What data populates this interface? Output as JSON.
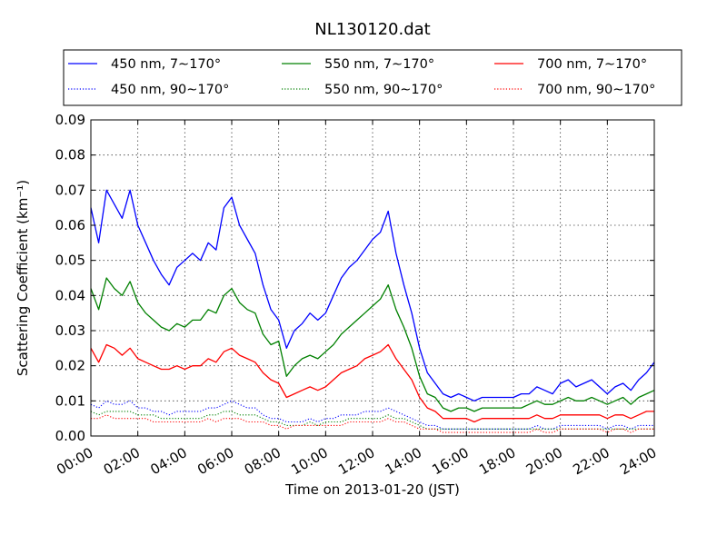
{
  "chart_data": {
    "type": "line",
    "title": "NL130120.dat",
    "xlabel": "Time on 2013-01-20 (JST)",
    "ylabel": "Scattering Coefficient (km⁻¹)",
    "xlim": [
      "00:00",
      "24:00"
    ],
    "ylim": [
      0,
      0.09
    ],
    "x_ticks": [
      "00:00",
      "02:00",
      "04:00",
      "06:00",
      "08:00",
      "10:00",
      "12:00",
      "14:00",
      "16:00",
      "18:00",
      "20:00",
      "22:00",
      "24:00"
    ],
    "y_ticks": [
      "0.00",
      "0.01",
      "0.02",
      "0.03",
      "0.04",
      "0.05",
      "0.06",
      "0.07",
      "0.08",
      "0.09"
    ],
    "grid": true,
    "legend_position": "top, above plot",
    "x": [
      "00:00",
      "00:20",
      "00:40",
      "01:00",
      "01:20",
      "01:40",
      "02:00",
      "02:20",
      "02:40",
      "03:00",
      "03:20",
      "03:40",
      "04:00",
      "04:20",
      "04:40",
      "05:00",
      "05:20",
      "05:40",
      "06:00",
      "06:20",
      "06:40",
      "07:00",
      "07:20",
      "07:40",
      "08:00",
      "08:20",
      "08:40",
      "09:00",
      "09:20",
      "09:40",
      "10:00",
      "10:20",
      "10:40",
      "11:00",
      "11:20",
      "11:40",
      "12:00",
      "12:20",
      "12:40",
      "13:00",
      "13:20",
      "13:40",
      "14:00",
      "14:20",
      "14:40",
      "15:00",
      "15:20",
      "15:40",
      "16:00",
      "16:20",
      "16:40",
      "17:00",
      "17:20",
      "17:40",
      "18:00",
      "18:20",
      "18:40",
      "19:00",
      "19:20",
      "19:40",
      "20:00",
      "20:20",
      "20:40",
      "21:00",
      "21:20",
      "21:40",
      "22:00",
      "22:20",
      "22:40",
      "23:00",
      "23:20",
      "23:40",
      "24:00"
    ],
    "series": [
      {
        "name": "450 nm, 7∼170°",
        "color": "#0000ff",
        "style": "solid",
        "values": [
          0.065,
          0.055,
          0.07,
          0.066,
          0.062,
          0.07,
          0.06,
          0.055,
          0.05,
          0.046,
          0.043,
          0.048,
          0.05,
          0.052,
          0.05,
          0.055,
          0.053,
          0.065,
          0.068,
          0.06,
          0.056,
          0.052,
          0.043,
          0.036,
          0.033,
          0.025,
          0.03,
          0.032,
          0.035,
          0.033,
          0.035,
          0.04,
          0.045,
          0.048,
          0.05,
          0.053,
          0.056,
          0.058,
          0.064,
          0.052,
          0.043,
          0.035,
          0.025,
          0.018,
          0.015,
          0.012,
          0.011,
          0.012,
          0.011,
          0.01,
          0.011,
          0.011,
          0.011,
          0.011,
          0.011,
          0.012,
          0.012,
          0.014,
          0.013,
          0.012,
          0.015,
          0.016,
          0.014,
          0.015,
          0.016,
          0.014,
          0.012,
          0.014,
          0.015,
          0.013,
          0.016,
          0.018,
          0.021
        ]
      },
      {
        "name": "550 nm, 7∼170°",
        "color": "#008000",
        "style": "solid",
        "values": [
          0.042,
          0.036,
          0.045,
          0.042,
          0.04,
          0.044,
          0.038,
          0.035,
          0.033,
          0.031,
          0.03,
          0.032,
          0.031,
          0.033,
          0.033,
          0.036,
          0.035,
          0.04,
          0.042,
          0.038,
          0.036,
          0.035,
          0.029,
          0.026,
          0.027,
          0.017,
          0.02,
          0.022,
          0.023,
          0.022,
          0.024,
          0.026,
          0.029,
          0.031,
          0.033,
          0.035,
          0.037,
          0.039,
          0.043,
          0.036,
          0.031,
          0.025,
          0.017,
          0.012,
          0.011,
          0.008,
          0.007,
          0.008,
          0.008,
          0.007,
          0.008,
          0.008,
          0.008,
          0.008,
          0.008,
          0.008,
          0.009,
          0.01,
          0.009,
          0.009,
          0.01,
          0.011,
          0.01,
          0.01,
          0.011,
          0.01,
          0.009,
          0.01,
          0.011,
          0.009,
          0.011,
          0.012,
          0.013
        ]
      },
      {
        "name": "700 nm, 7∼170°",
        "color": "#ff0000",
        "style": "solid",
        "values": [
          0.025,
          0.021,
          0.026,
          0.025,
          0.023,
          0.025,
          0.022,
          0.021,
          0.02,
          0.019,
          0.019,
          0.02,
          0.019,
          0.02,
          0.02,
          0.022,
          0.021,
          0.024,
          0.025,
          0.023,
          0.022,
          0.021,
          0.018,
          0.016,
          0.015,
          0.011,
          0.012,
          0.013,
          0.014,
          0.013,
          0.014,
          0.016,
          0.018,
          0.019,
          0.02,
          0.022,
          0.023,
          0.024,
          0.026,
          0.022,
          0.019,
          0.016,
          0.011,
          0.008,
          0.007,
          0.005,
          0.005,
          0.005,
          0.005,
          0.004,
          0.005,
          0.005,
          0.005,
          0.005,
          0.005,
          0.005,
          0.005,
          0.006,
          0.005,
          0.005,
          0.006,
          0.006,
          0.006,
          0.006,
          0.006,
          0.006,
          0.005,
          0.006,
          0.006,
          0.005,
          0.006,
          0.007,
          0.007
        ]
      },
      {
        "name": "450 nm, 90∼170°",
        "color": "#0000ff",
        "style": "dotted",
        "values": [
          0.009,
          0.008,
          0.01,
          0.009,
          0.009,
          0.01,
          0.008,
          0.008,
          0.007,
          0.007,
          0.006,
          0.007,
          0.007,
          0.007,
          0.007,
          0.008,
          0.008,
          0.009,
          0.01,
          0.009,
          0.008,
          0.008,
          0.006,
          0.005,
          0.005,
          0.004,
          0.004,
          0.004,
          0.005,
          0.004,
          0.005,
          0.005,
          0.006,
          0.006,
          0.006,
          0.007,
          0.007,
          0.007,
          0.008,
          0.007,
          0.006,
          0.005,
          0.004,
          0.003,
          0.003,
          0.002,
          0.002,
          0.002,
          0.002,
          0.002,
          0.002,
          0.002,
          0.002,
          0.002,
          0.002,
          0.002,
          0.002,
          0.003,
          0.002,
          0.002,
          0.003,
          0.003,
          0.003,
          0.003,
          0.003,
          0.003,
          0.002,
          0.003,
          0.003,
          0.002,
          0.003,
          0.003,
          0.003
        ]
      },
      {
        "name": "550 nm, 90∼170°",
        "color": "#008000",
        "style": "dotted",
        "values": [
          0.007,
          0.006,
          0.007,
          0.007,
          0.007,
          0.007,
          0.006,
          0.006,
          0.006,
          0.005,
          0.005,
          0.005,
          0.005,
          0.005,
          0.005,
          0.006,
          0.006,
          0.007,
          0.007,
          0.006,
          0.006,
          0.006,
          0.005,
          0.004,
          0.004,
          0.003,
          0.003,
          0.003,
          0.004,
          0.003,
          0.004,
          0.004,
          0.004,
          0.005,
          0.005,
          0.005,
          0.005,
          0.005,
          0.006,
          0.005,
          0.005,
          0.004,
          0.003,
          0.002,
          0.002,
          0.002,
          0.002,
          0.002,
          0.002,
          0.002,
          0.002,
          0.002,
          0.002,
          0.002,
          0.002,
          0.002,
          0.002,
          0.002,
          0.002,
          0.002,
          0.002,
          0.002,
          0.002,
          0.002,
          0.002,
          0.002,
          0.002,
          0.002,
          0.002,
          0.002,
          0.002,
          0.002,
          0.002
        ]
      },
      {
        "name": "700 nm, 90∼170°",
        "color": "#ff0000",
        "style": "dotted",
        "values": [
          0.005,
          0.005,
          0.006,
          0.005,
          0.005,
          0.005,
          0.005,
          0.005,
          0.004,
          0.004,
          0.004,
          0.004,
          0.004,
          0.004,
          0.004,
          0.005,
          0.004,
          0.005,
          0.005,
          0.005,
          0.004,
          0.004,
          0.004,
          0.003,
          0.003,
          0.002,
          0.003,
          0.003,
          0.003,
          0.003,
          0.003,
          0.003,
          0.003,
          0.004,
          0.004,
          0.004,
          0.004,
          0.004,
          0.005,
          0.004,
          0.004,
          0.003,
          0.002,
          0.002,
          0.002,
          0.001,
          0.001,
          0.001,
          0.001,
          0.001,
          0.001,
          0.001,
          0.001,
          0.001,
          0.001,
          0.001,
          0.001,
          0.002,
          0.001,
          0.001,
          0.002,
          0.002,
          0.002,
          0.002,
          0.002,
          0.002,
          0.001,
          0.002,
          0.002,
          0.001,
          0.002,
          0.002,
          0.002
        ]
      }
    ],
    "legend_order": [
      0,
      1,
      2,
      3,
      4,
      5
    ]
  }
}
